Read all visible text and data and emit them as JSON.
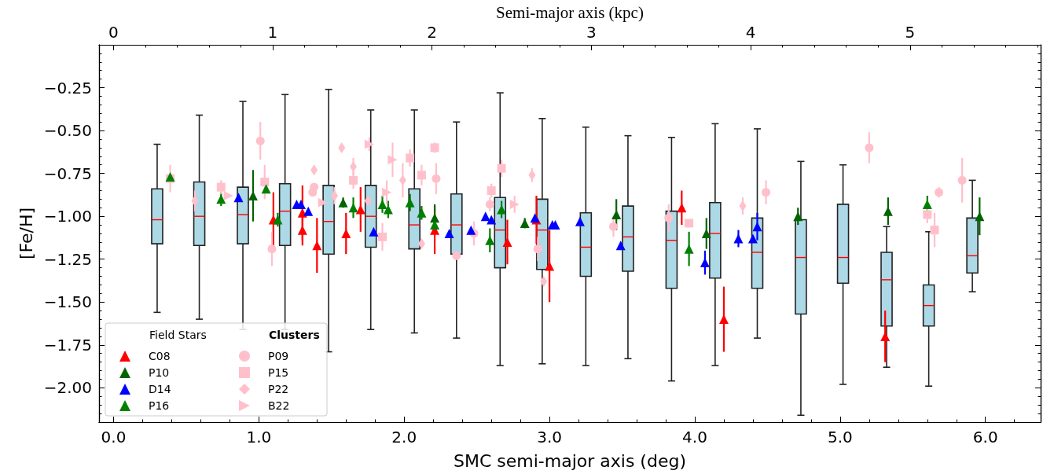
{
  "chart_data": {
    "type": "scatter",
    "xlabel": "SMC semi-major axis (deg)",
    "ylabel": "[Fe/H]",
    "x2label": "Semi-major axis (kpc)",
    "xlim": [
      -0.1,
      6.38
    ],
    "xticks": [
      {
        "value": 0,
        "label": "0.0"
      },
      {
        "value": 1,
        "label": "1.0"
      },
      {
        "value": 2,
        "label": "2.0"
      },
      {
        "value": 3,
        "label": "3.0"
      },
      {
        "value": 4,
        "label": "4.0"
      },
      {
        "value": 5,
        "label": "5.0"
      },
      {
        "value": 6,
        "label": "6.0"
      }
    ],
    "x2lim": [
      -0.09,
      5.82
    ],
    "x2ticks": [
      0,
      1,
      2,
      3,
      4,
      5
    ],
    "ylim": [
      -2.2,
      0.0
    ],
    "yticks": [
      {
        "value": -2.0,
        "label": "−2.00"
      },
      {
        "value": -1.75,
        "label": "−1.75"
      },
      {
        "value": -1.5,
        "label": "−1.50"
      },
      {
        "value": -1.25,
        "label": "−1.25"
      },
      {
        "value": -1.0,
        "label": "−1.00"
      },
      {
        "value": -0.75,
        "label": "−0.75"
      },
      {
        "value": -0.5,
        "label": "−0.50"
      },
      {
        "value": -0.25,
        "label": "−0.25"
      }
    ],
    "grid": false,
    "legend": "bottom left",
    "annotations": [
      "Field Stars",
      "Clusters"
    ],
    "series": [
      {
        "type": "box",
        "color": "#add8e6",
        "x": [
          0.3,
          0.59,
          0.89,
          1.18,
          1.48,
          1.77,
          2.07,
          2.36,
          2.66,
          2.95,
          3.25,
          3.54,
          3.84,
          4.14,
          4.43,
          4.73,
          5.02,
          5.32,
          5.61,
          5.91
        ],
        "boxes": [
          {
            "low": -1.56,
            "q1": -1.16,
            "median": -1.02,
            "q3": -0.84,
            "high": -0.58
          },
          {
            "low": -1.6,
            "q1": -1.17,
            "median": -1.0,
            "q3": -0.8,
            "high": -0.41
          },
          {
            "low": -1.66,
            "q1": -1.16,
            "median": -0.99,
            "q3": -0.83,
            "high": -0.33
          },
          {
            "low": -1.66,
            "q1": -1.17,
            "median": -0.97,
            "q3": -0.81,
            "high": -0.29
          },
          {
            "low": -1.79,
            "q1": -1.22,
            "median": -1.03,
            "q3": -0.82,
            "high": -0.26
          },
          {
            "low": -1.66,
            "q1": -1.18,
            "median": -1.0,
            "q3": -0.82,
            "high": -0.38
          },
          {
            "low": -1.68,
            "q1": -1.19,
            "median": -1.05,
            "q3": -0.84,
            "high": -0.38
          },
          {
            "low": -1.71,
            "q1": -1.22,
            "median": -1.05,
            "q3": -0.87,
            "high": -0.45
          },
          {
            "low": -1.87,
            "q1": -1.3,
            "median": -1.08,
            "q3": -0.89,
            "high": -0.28
          },
          {
            "low": -1.86,
            "q1": -1.31,
            "median": -1.08,
            "q3": -0.9,
            "high": -0.43
          },
          {
            "low": -1.87,
            "q1": -1.35,
            "median": -1.18,
            "q3": -0.98,
            "high": -0.48
          },
          {
            "low": -1.83,
            "q1": -1.32,
            "median": -1.12,
            "q3": -0.94,
            "high": -0.53
          },
          {
            "low": -1.96,
            "q1": -1.42,
            "median": -1.14,
            "q3": -0.97,
            "high": -0.54
          },
          {
            "low": -1.87,
            "q1": -1.36,
            "median": -1.1,
            "q3": -0.92,
            "high": -0.46
          },
          {
            "low": -1.71,
            "q1": -1.42,
            "median": -1.21,
            "q3": -1.01,
            "high": -0.49
          },
          {
            "low": -2.16,
            "q1": -1.57,
            "median": -1.24,
            "q3": -1.02,
            "high": -0.68
          },
          {
            "low": -1.98,
            "q1": -1.39,
            "median": -1.24,
            "q3": -0.93,
            "high": -0.7
          },
          {
            "low": -1.88,
            "q1": -1.64,
            "median": -1.37,
            "q3": -1.21,
            "high": -1.06
          },
          {
            "low": -1.99,
            "q1": -1.64,
            "median": -1.52,
            "q3": -1.4,
            "high": -1.09
          },
          {
            "low": -1.44,
            "q1": -1.33,
            "median": -1.23,
            "q3": -1.01,
            "high": -0.79
          }
        ]
      },
      {
        "name": "C08",
        "color": "#ff0000",
        "marker": "triangle",
        "x": [
          1.1,
          1.3,
          1.3,
          1.4,
          1.6,
          1.7,
          2.21,
          2.71,
          2.91,
          3.0,
          3.91,
          4.2,
          5.31
        ],
        "values": [
          -1.02,
          -0.98,
          -1.08,
          -1.17,
          -1.1,
          -0.96,
          -1.08,
          -1.15,
          -1.02,
          -1.29,
          -0.95,
          -1.6,
          -1.7
        ],
        "errors": [
          0.16,
          0.16,
          0.09,
          0.16,
          0.12,
          0.13,
          0.14,
          0.13,
          0.14,
          0.21,
          0.1,
          0.19,
          0.15
        ]
      },
      {
        "name": "P10",
        "color": "#006400",
        "marker": "triangle",
        "x": [
          0.96,
          1.58,
          2.21,
          2.83,
          3.46,
          4.08,
          4.71,
          5.33,
          5.96
        ],
        "values": [
          -0.88,
          -0.92,
          -1.01,
          -1.04,
          -0.99,
          -1.1,
          -1.0,
          -0.97,
          -1.0
        ],
        "errors": [
          0.15,
          0.03,
          0.08,
          0.03,
          0.09,
          0.09,
          0.05,
          0.08,
          0.11
        ]
      },
      {
        "name": "D14",
        "color": "#0000ff",
        "marker": "triangle",
        "x": [
          0.86,
          1.26,
          1.29,
          1.34,
          1.79,
          2.31,
          2.46,
          2.56,
          2.6,
          2.9,
          3.02,
          3.04,
          3.21,
          3.49,
          4.07,
          4.3,
          4.4,
          4.43
        ],
        "values": [
          -0.89,
          -0.93,
          -0.93,
          -0.97,
          -1.09,
          -1.1,
          -1.08,
          -1.0,
          -1.02,
          -1.01,
          -1.05,
          -1.05,
          -1.03,
          -1.17,
          -1.27,
          -1.13,
          -1.13,
          -1.06
        ],
        "errors": [
          null,
          null,
          null,
          null,
          null,
          null,
          null,
          null,
          null,
          null,
          null,
          null,
          null,
          null,
          0.07,
          0.05,
          null,
          0.08
        ]
      },
      {
        "name": "P16",
        "color": "#008000",
        "marker": "triangle",
        "x": [
          0.39,
          0.74,
          1.05,
          1.13,
          1.65,
          1.85,
          1.89,
          2.04,
          2.12,
          2.21,
          2.59,
          2.67,
          3.96,
          5.6
        ],
        "values": [
          -0.77,
          -0.9,
          -0.84,
          -1.02,
          -0.95,
          -0.93,
          -0.96,
          -0.92,
          -0.98,
          -1.05,
          -1.14,
          -0.96,
          -1.19,
          -0.93
        ],
        "errors": [
          null,
          0.04,
          null,
          0.04,
          0.06,
          0.05,
          0.05,
          0.05,
          0.04,
          null,
          0.07,
          0.05,
          0.1,
          0.05
        ]
      },
      {
        "name": "P09",
        "color": "#ffc0cb",
        "marker": "circle",
        "x": [
          1.01,
          1.09,
          1.37,
          1.38,
          2.22,
          2.36,
          2.48,
          2.59,
          2.92,
          3.44,
          3.82,
          4.49,
          5.2,
          5.68,
          5.84
        ],
        "values": [
          -0.56,
          -1.19,
          -0.86,
          -0.83,
          -0.78,
          -1.23,
          -1.1,
          -0.93,
          -1.19,
          -1.06,
          -1.01,
          -0.86,
          -0.6,
          -0.86,
          -0.79
        ],
        "errors": [
          0.11,
          0.1,
          null,
          null,
          0.09,
          null,
          0.07,
          0.04,
          0.07,
          0.06,
          0.08,
          0.07,
          0.09,
          0.03,
          0.13
        ]
      },
      {
        "name": "P15",
        "color": "#ffc0cb",
        "marker": "square",
        "x": [
          0.39,
          0.74,
          1.04,
          1.65,
          1.85,
          2.04,
          2.12,
          2.21,
          2.6,
          2.67,
          3.96,
          5.6,
          5.65
        ],
        "values": [
          -0.78,
          -0.83,
          -0.8,
          -0.79,
          -1.12,
          -0.66,
          -0.76,
          -0.6,
          -0.85,
          -0.72,
          -1.04,
          -0.99,
          -1.08
        ],
        "errors": [
          0.08,
          0.04,
          0.1,
          0.05,
          0.08,
          0.05,
          0.06,
          0.03,
          0.04,
          0.05,
          null,
          0.05,
          0.1
        ]
      },
      {
        "name": "P22",
        "color": "#ffc0cb",
        "marker": "diamond",
        "x": [
          0.56,
          1.38,
          1.52,
          1.57,
          1.65,
          1.75,
          1.99,
          2.12,
          2.88,
          2.96,
          4.33
        ],
        "values": [
          -0.91,
          -0.73,
          -0.88,
          -0.6,
          -0.71,
          -0.91,
          -0.79,
          -1.16,
          -0.76,
          -1.38,
          -0.94
        ],
        "errors": [
          0.06,
          null,
          0.05,
          null,
          0.05,
          null,
          0.1,
          null,
          0.04,
          null,
          0.05
        ]
      },
      {
        "name": "B22",
        "color": "#ffc0cb",
        "marker": "triangle-right",
        "x": [
          0.79,
          1.44,
          1.76,
          1.88,
          1.92,
          2.76
        ],
        "values": [
          -0.88,
          -0.92,
          -0.58,
          -0.86,
          -0.67,
          -0.93
        ],
        "errors": [
          null,
          null,
          0.04,
          0.07,
          0.1,
          0.05
        ]
      }
    ]
  }
}
